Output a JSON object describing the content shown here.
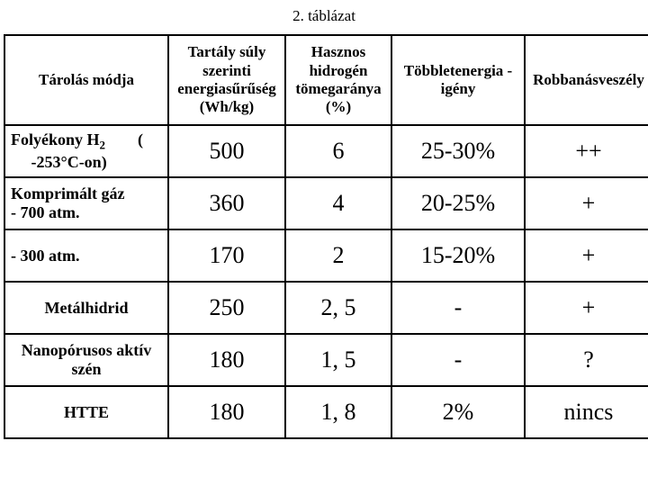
{
  "title": "2. táblázat",
  "headers": {
    "method": "Tárolás módja",
    "col1": "Tartály súly szerinti energiasűrűség (Wh/kg)",
    "col2": "Hasznos hidrogén tömegaránya (%)",
    "col3": "Többletenergia - igény",
    "col4": "Robbanásveszély"
  },
  "rows": [
    {
      "label_html": "Folyékony H<span class=\"sub\">2</span>&nbsp;&nbsp;&nbsp;&nbsp;&nbsp;&nbsp;&nbsp;&nbsp;(<br>&nbsp;&nbsp;&nbsp;&nbsp;&nbsp;-253°C-on)",
      "centered": false,
      "c1": "500",
      "c2": "6",
      "c3": "25-30%",
      "c4": "++"
    },
    {
      "label_html": "Komprimált gáz<br>- 700 atm.",
      "centered": false,
      "c1": "360",
      "c2": "4",
      "c3": "20-25%",
      "c4": "+"
    },
    {
      "label_html": "- 300 atm.",
      "centered": false,
      "c1": "170",
      "c2": "2",
      "c3": "15-20%",
      "c4": "+"
    },
    {
      "label_html": "Metálhidrid",
      "centered": true,
      "c1": "250",
      "c2": "2, 5",
      "c3": "-",
      "c4": "+"
    },
    {
      "label_html": "Nanopórusos aktív szén",
      "centered": true,
      "c1": "180",
      "c2": "1, 5",
      "c3": "-",
      "c4": "?"
    },
    {
      "label_html": "HTTE",
      "centered": true,
      "c1": "180",
      "c2": "1, 8",
      "c3": "2%",
      "c4": "nincs"
    }
  ],
  "colors": {
    "background": "#ffffff",
    "border": "#000000",
    "text": "#000000"
  }
}
